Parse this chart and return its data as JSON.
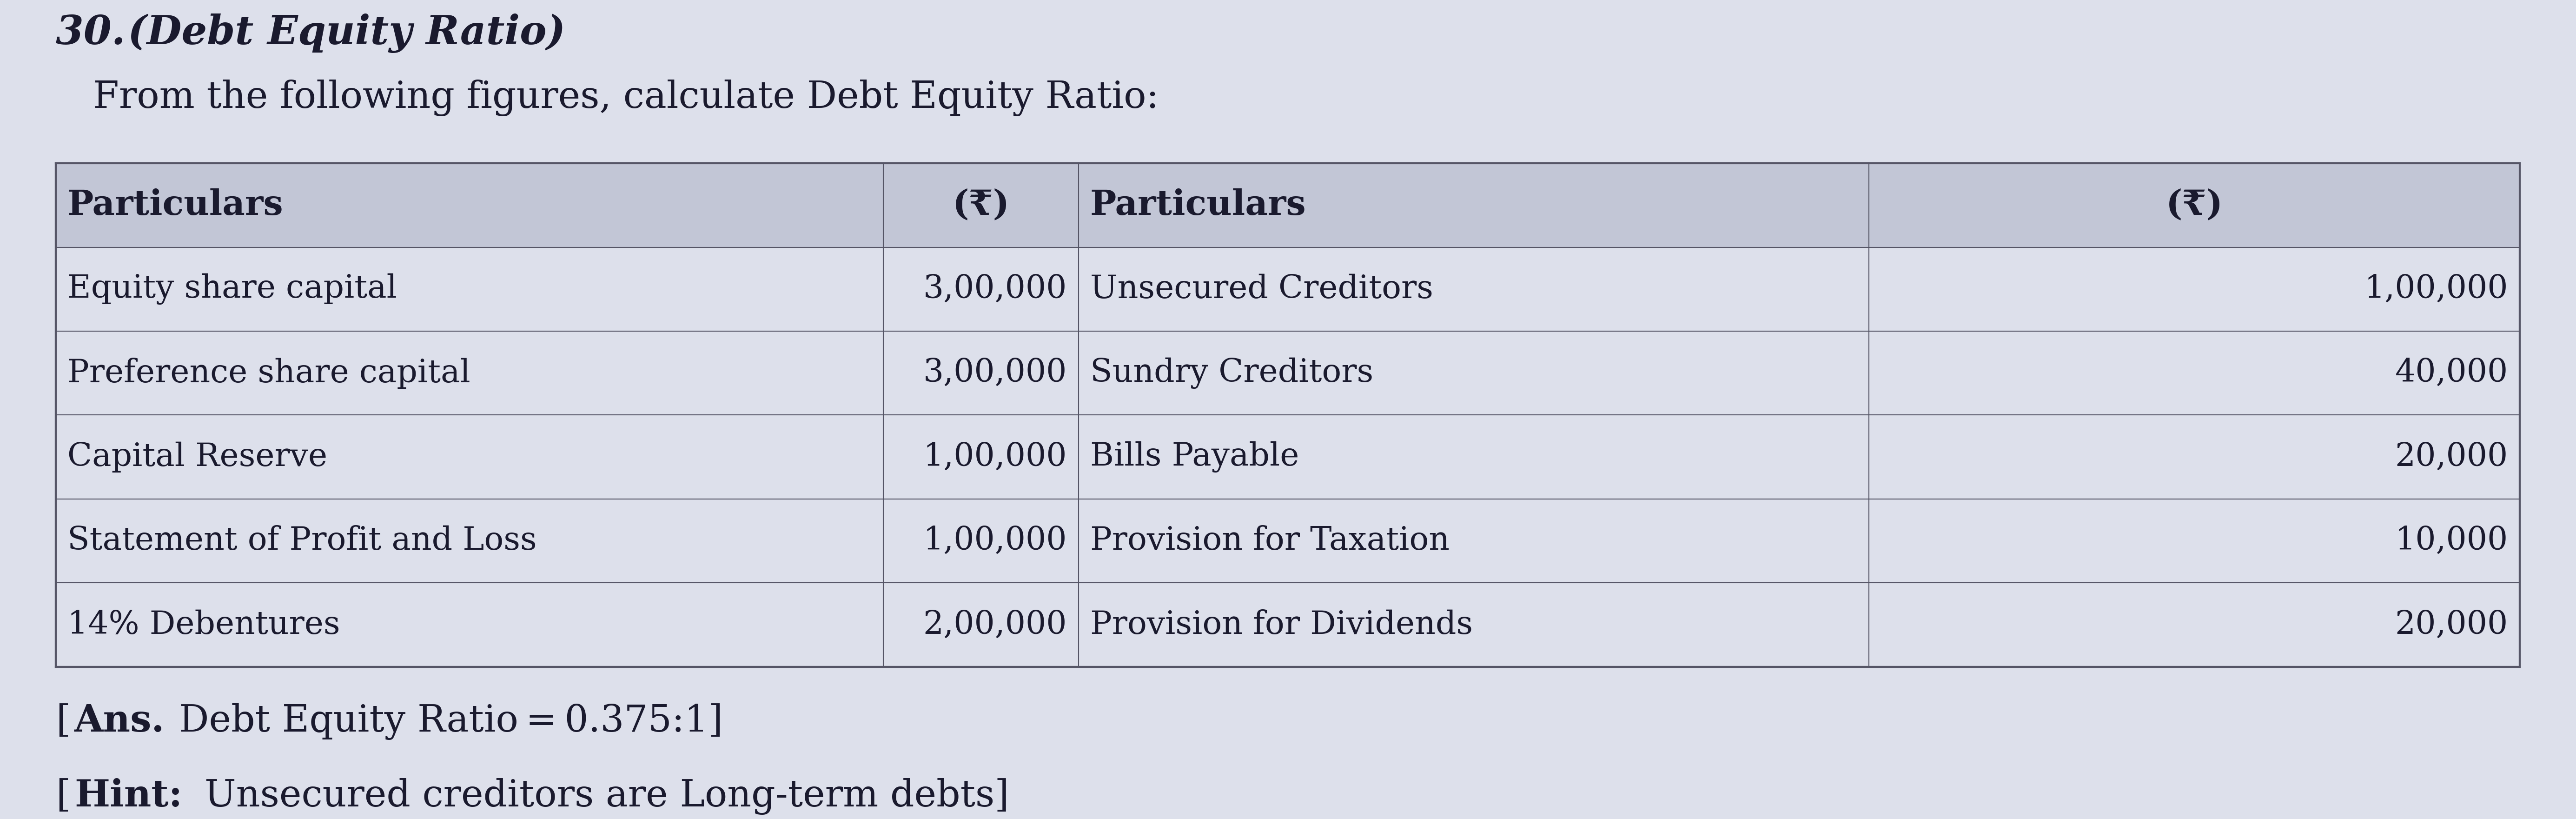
{
  "title_num": "30.",
  "title_italic": "(Debt Equity Ratio)",
  "subtitle": "From the following figures, calculate Debt Equity Ratio:",
  "left_rows": [
    [
      "Equity share capital",
      "3,00,000"
    ],
    [
      "Preference share capital",
      "3,00,000"
    ],
    [
      "Capital Reserve",
      "1,00,000"
    ],
    [
      "Statement of Profit and Loss",
      "1,00,000"
    ],
    [
      "14% Debentures",
      "2,00,000"
    ]
  ],
  "right_rows": [
    [
      "Unsecured Creditors",
      "1,00,000"
    ],
    [
      "Sundry Creditors",
      "40,000"
    ],
    [
      "Bills Payable",
      "20,000"
    ],
    [
      "Provision for Taxation",
      "10,000"
    ],
    [
      "Provision for Dividends",
      "20,000"
    ]
  ],
  "bg_color": "#dde0eb",
  "header_bg": "#c2c6d6",
  "table_border_color": "#555566",
  "text_color": "#1a1a2e",
  "page_bg": "#dde0eb"
}
